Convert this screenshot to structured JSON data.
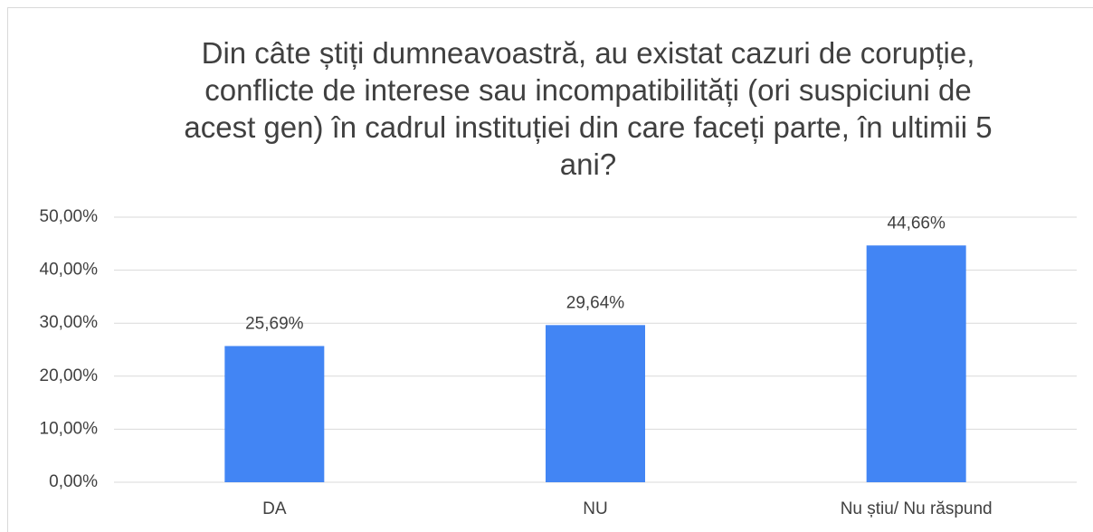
{
  "chart_data": {
    "type": "bar",
    "title": "Din câte știți dumneavoastră, au existat cazuri de corupție, conflicte de interese sau incompatibilități (ori suspiciuni de acest gen) în cadrul instituției din care faceți parte, în ultimii 5 ani?",
    "categories": [
      "DA",
      "NU",
      "Nu știu/ Nu răspund"
    ],
    "values": [
      25.69,
      29.64,
      44.66
    ],
    "value_labels": [
      "25,69%",
      "29,64%",
      "44,66%"
    ],
    "color": "#4285f4",
    "ylim": [
      0,
      50
    ],
    "yticks": [
      {
        "value": 0,
        "label": "0,00%"
      },
      {
        "value": 10,
        "label": "10,00%"
      },
      {
        "value": 20,
        "label": "20,00%"
      },
      {
        "value": 30,
        "label": "30,00%"
      },
      {
        "value": 40,
        "label": "40,00%"
      },
      {
        "value": 50,
        "label": "50,00%"
      }
    ],
    "grid": true
  }
}
